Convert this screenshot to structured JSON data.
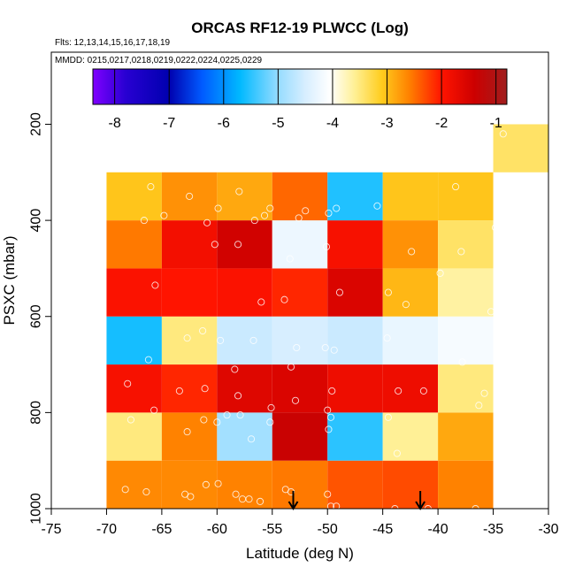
{
  "chart_data": {
    "type": "heatmap",
    "title": "ORCAS RF12-19 PLWCC (Log)",
    "notes": [
      "Flts: 12,13,14,15,16,17,18,19",
      "MMDD: 0215,0217,0218,0219,0222,0224,0225,0229"
    ],
    "xlabel": "Latitude (deg N)",
    "ylabel": "PSXC (mbar)",
    "xlim": [
      -75,
      -30
    ],
    "ylim": [
      1000,
      50
    ],
    "y_reversed": true,
    "xticks": [
      -75,
      -70,
      -65,
      -60,
      -55,
      -50,
      -45,
      -40,
      -35,
      -30
    ],
    "yticks": [
      200,
      400,
      600,
      800,
      1000
    ],
    "colorbar": {
      "range": [
        -8.4,
        -0.8
      ],
      "ticks": [
        -8,
        -7,
        -6,
        -5,
        -4,
        -3,
        -2,
        -1
      ],
      "scheme": "purple-blue-white-yellow-orange-red-darkred"
    },
    "lat_bins": [
      -70,
      -65,
      -60,
      -55,
      -50,
      -45,
      -40,
      -35
    ],
    "pressure_bins": [
      1000,
      900,
      800,
      700,
      600,
      500,
      400,
      300
    ],
    "cells_description": "values[row][col]: rows from 1000-900 mbar upward to 400-300 mbar, cols from -70 to -35 deg N; null = no data",
    "values": [
      [
        -2.65,
        -2.65,
        -2.6,
        -2.55,
        -2.35,
        -2.3,
        -2.6
      ],
      [
        -3.5,
        -2.6,
        -4.9,
        -1.35,
        -5.5,
        -3.6,
        -2.85
      ],
      [
        -1.9,
        -2.1,
        -1.6,
        -1.55,
        -1.8,
        -1.8,
        -3.5
      ],
      [
        -5.6,
        -3.5,
        -4.6,
        -4.5,
        -4.6,
        -4.3,
        -4.15
      ],
      [
        -1.95,
        -2.0,
        -1.95,
        -2.1,
        -1.55,
        -2.95,
        -3.65
      ],
      [
        -2.55,
        -1.85,
        -1.45,
        -4.25,
        -1.9,
        -2.7,
        -3.4
      ],
      [
        -3.05,
        -2.7,
        -2.85,
        -2.45,
        -5.55,
        -3.05,
        -3.05
      ]
    ],
    "extra_cells": [
      {
        "lat_range": [
          -35,
          -30
        ],
        "pressure_range": [
          300,
          200
        ],
        "value": -3.4
      }
    ],
    "observations": [
      [
        -68.3,
        960
      ],
      [
        -66.4,
        965
      ],
      [
        -62.9,
        970
      ],
      [
        -62.4,
        975
      ],
      [
        -61,
        950
      ],
      [
        -59.9,
        948
      ],
      [
        -58.3,
        970
      ],
      [
        -57.7,
        980
      ],
      [
        -57.1,
        980
      ],
      [
        -56.1,
        985
      ],
      [
        -53.8,
        960
      ],
      [
        -53.3,
        965
      ],
      [
        -50,
        970
      ],
      [
        -49.7,
        995
      ],
      [
        -49.2,
        995
      ],
      [
        -43.9,
        1000
      ],
      [
        -40.9,
        1000
      ],
      [
        -36.6,
        1000
      ],
      [
        -67.8,
        815
      ],
      [
        -65.7,
        795
      ],
      [
        -62.7,
        840
      ],
      [
        -61.2,
        815
      ],
      [
        -60,
        820
      ],
      [
        -59.1,
        805
      ],
      [
        -57.9,
        805
      ],
      [
        -56.9,
        855
      ],
      [
        -55.2,
        820
      ],
      [
        -55.1,
        790
      ],
      [
        -50,
        795
      ],
      [
        -49.9,
        835
      ],
      [
        -49.7,
        810
      ],
      [
        -44.5,
        810
      ],
      [
        -43.7,
        885
      ],
      [
        -36.3,
        785
      ],
      [
        -68.1,
        740
      ],
      [
        -63.4,
        755
      ],
      [
        -61.1,
        750
      ],
      [
        -58.1,
        765
      ],
      [
        -52.9,
        775
      ],
      [
        -49.6,
        755
      ],
      [
        -43.6,
        755
      ],
      [
        -41.3,
        755
      ],
      [
        -35.8,
        760
      ],
      [
        -66.2,
        690
      ],
      [
        -62.7,
        645
      ],
      [
        -61.3,
        630
      ],
      [
        -59.7,
        650
      ],
      [
        -58.4,
        710
      ],
      [
        -56.7,
        650
      ],
      [
        -53.3,
        705
      ],
      [
        -52.8,
        665
      ],
      [
        -50.2,
        665
      ],
      [
        -49.4,
        670
      ],
      [
        -44.6,
        645
      ],
      [
        -37.8,
        695
      ],
      [
        -35.2,
        590
      ],
      [
        -65.6,
        535
      ],
      [
        -56,
        570
      ],
      [
        -53.9,
        565
      ],
      [
        -44.5,
        550
      ],
      [
        -42.9,
        575
      ],
      [
        -48.9,
        550
      ],
      [
        -39.8,
        510
      ],
      [
        -60.2,
        450
      ],
      [
        -58.1,
        450
      ],
      [
        -53.4,
        480
      ],
      [
        -50.1,
        455
      ],
      [
        -42.4,
        465
      ],
      [
        -37.9,
        465
      ],
      [
        -34.8,
        415
      ],
      [
        -66,
        330
      ],
      [
        -66.6,
        400
      ],
      [
        -64.8,
        390
      ],
      [
        -62.5,
        350
      ],
      [
        -60.9,
        405
      ],
      [
        -59.9,
        375
      ],
      [
        -58,
        340
      ],
      [
        -56.6,
        400
      ],
      [
        -55.7,
        390
      ],
      [
        -55.2,
        375
      ],
      [
        -52.6,
        395
      ],
      [
        -52,
        380
      ],
      [
        -49.9,
        385
      ],
      [
        -49.2,
        375
      ],
      [
        -45.5,
        370
      ],
      [
        -38.4,
        330
      ],
      [
        -34.1,
        220
      ]
    ],
    "arrows_lat": [
      -53.1,
      -41.6
    ]
  }
}
